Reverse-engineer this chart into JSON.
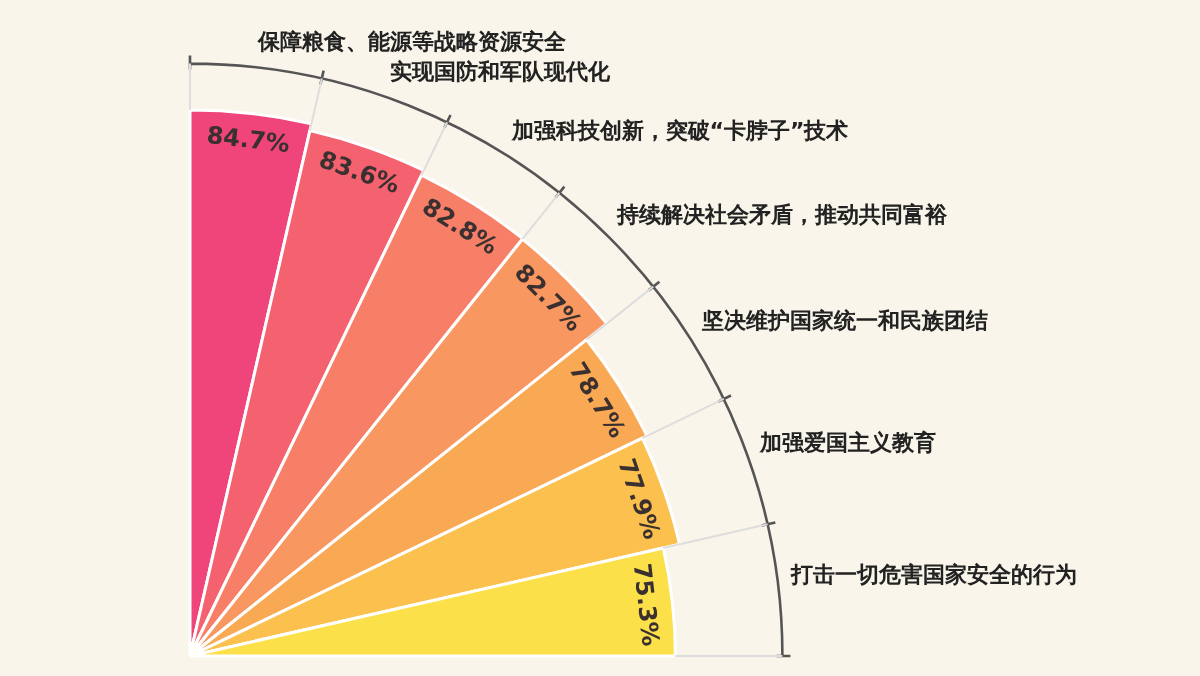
{
  "chart_data": {
    "type": "other",
    "categories": [
      "保障粮食、能源等战略资源安全",
      "实现国防和军队现代化",
      "加强科技创新，突破“卡脖子”技术",
      "持续解决社会矛盾，推动共同富裕",
      "坚决维护国家统一和民族团结",
      "加强爱国主义教育",
      "打击一切危害国家安全的行为"
    ],
    "values": [
      84.7,
      83.6,
      82.8,
      82.7,
      78.7,
      77.9,
      75.3
    ],
    "value_labels": [
      "84.7%",
      "83.6%",
      "82.8%",
      "82.7%",
      "78.7%",
      "77.9%",
      "75.3%"
    ],
    "colors": [
      "#f0457a",
      "#f4616f",
      "#f77f68",
      "#f99760",
      "#f9a954",
      "#fbc04d",
      "#fbe04a"
    ]
  }
}
